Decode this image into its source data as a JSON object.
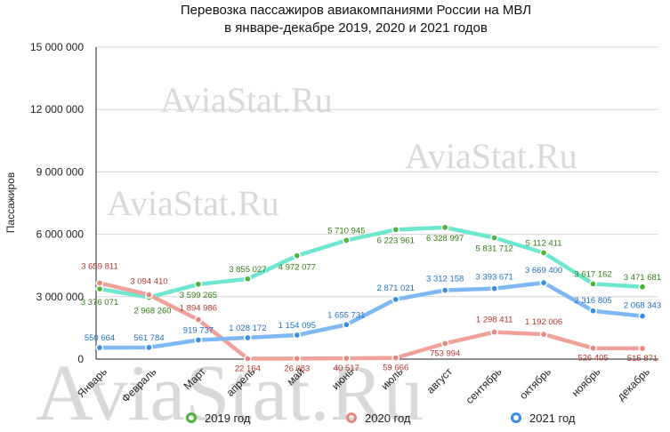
{
  "chart_data": {
    "type": "line",
    "title": "Перевозка пассажиров авиакомпаниями России на МВЛ",
    "subtitle": "в январе-декабре 2019, 2020 и 2021 годов",
    "ylabel": "Пассажиров",
    "xlabel": "",
    "ylim": [
      0,
      15000000
    ],
    "yticks": [
      0,
      3000000,
      6000000,
      9000000,
      12000000,
      15000000
    ],
    "ytick_labels": [
      "0",
      "3 000 000",
      "6 000 000",
      "9 000 000",
      "12 000 000",
      "15 000 000"
    ],
    "categories": [
      "Январь",
      "Февраль",
      "Март",
      "апрель",
      "май",
      "июнь",
      "июль",
      "август",
      "сентябрь",
      "октябрь",
      "ноябрь",
      "декабрь"
    ],
    "grid": "horizontal",
    "legend_position": "bottom",
    "watermark": "AviaStat.Ru",
    "series": [
      {
        "name": "2019 год",
        "line_color": "#6ee7d0",
        "marker_color": "#4fb23a",
        "label_color": "#2e7d14",
        "values": [
          3376071,
          2968260,
          3599265,
          3855027,
          4972077,
          5710945,
          6223961,
          6328997,
          5831712,
          5112411,
          3617162,
          3471681
        ],
        "labels": [
          "3 376 071",
          "2 968 260",
          "3 599 265",
          "3 855 027",
          "4 972 077",
          "5 710 945",
          "6 223 961",
          "6 328 997",
          "5 831 712",
          "5 112 411",
          "3 617 162",
          "3 471 681"
        ]
      },
      {
        "name": "2020 год",
        "line_color": "#f0a19a",
        "marker_color": "#e8877d",
        "label_color": "#b0362a",
        "values": [
          3659811,
          3094410,
          1894986,
          22164,
          26083,
          40517,
          59666,
          753994,
          1298411,
          1192006,
          526405,
          515871
        ],
        "labels": [
          "3 659 811",
          "3 094 410",
          "1 894 986",
          "22 164",
          "26 083",
          "40 517",
          "59 666",
          "753 994",
          "1 298 411",
          "1 192 006",
          "526 405",
          "515 871"
        ]
      },
      {
        "name": "2021 год",
        "line_color": "#7fb8f2",
        "marker_color": "#3b8fe0",
        "label_color": "#1f6fc1",
        "values": [
          550664,
          561784,
          919737,
          1028172,
          1154095,
          1655731,
          2871021,
          3312158,
          3393671,
          3669400,
          2316805,
          2068343
        ],
        "labels": [
          "550 664",
          "561 784",
          "919 737",
          "1 028 172",
          "1 154 095",
          "1 655 731",
          "2 871 021",
          "3 312 158",
          "3 393 671",
          "3 669 400",
          "2 316 805",
          "2 068 343"
        ]
      }
    ]
  }
}
